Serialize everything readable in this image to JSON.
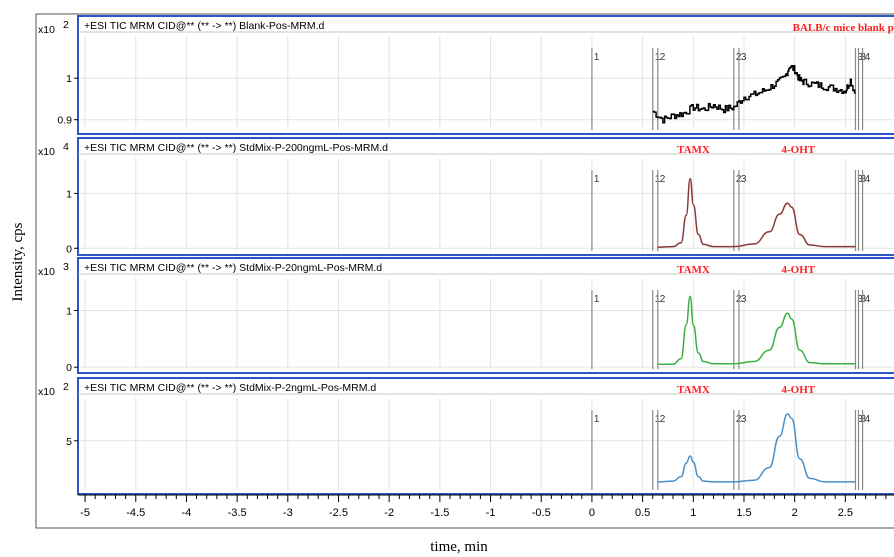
{
  "chart_data": {
    "type": "line",
    "ylabel": "Intensity, cps",
    "xlabel": "time, min",
    "xlim": [
      -5.05,
      2.98
    ],
    "xticks": [
      {
        "value": -5,
        "label": "-5"
      },
      {
        "value": -4.5,
        "label": "-4.5"
      },
      {
        "value": -4,
        "label": "-4"
      },
      {
        "value": -3.5,
        "label": "-3.5"
      },
      {
        "value": -3,
        "label": "-3"
      },
      {
        "value": -2.5,
        "label": "-2.5"
      },
      {
        "value": -2,
        "label": "-2"
      },
      {
        "value": -1.5,
        "label": "-1.5"
      },
      {
        "value": -1,
        "label": "-1"
      },
      {
        "value": -0.5,
        "label": "-0.5"
      },
      {
        "value": 0,
        "label": "0"
      },
      {
        "value": 0.5,
        "label": "0.5"
      },
      {
        "value": 1,
        "label": "1"
      },
      {
        "value": 1.5,
        "label": "1.5"
      },
      {
        "value": 2,
        "label": "2"
      },
      {
        "value": 2.5,
        "label": "2.5"
      }
    ],
    "grid": true,
    "markers": [
      {
        "x": 0,
        "label": "1"
      },
      {
        "x": 0.6,
        "label": "1"
      },
      {
        "x": 0.65,
        "label": "2"
      },
      {
        "x": 1.4,
        "label": "2"
      },
      {
        "x": 1.45,
        "label": "3"
      },
      {
        "x": 2.6,
        "label": "3"
      },
      {
        "x": 2.63,
        "label": "3"
      },
      {
        "x": 2.67,
        "label": "4"
      }
    ],
    "panels": [
      {
        "title": "+ESI TIC MRM CID@** (** -> **) Blank-Pos-MRM.d",
        "scale_label": "x10",
        "scale_exp": "2",
        "ylim": [
          0.88,
          1.08
        ],
        "yticks": [
          {
            "value": 1,
            "label": "1"
          },
          {
            "value": 0.9,
            "label": "0.9"
          }
        ],
        "color": "#000000",
        "trace_kind": "noise",
        "series": [
          {
            "x": [
              0.6,
              0.7,
              0.8,
              0.9,
              1.0,
              1.1,
              1.2,
              1.3,
              1.4,
              1.5,
              1.6,
              1.7,
              1.8,
              1.9,
              1.95,
              2.0,
              2.05,
              2.1,
              2.2,
              2.3,
              2.4,
              2.5,
              2.55,
              2.6
            ],
            "y": [
              0.92,
              0.9,
              0.91,
              0.915,
              0.93,
              0.925,
              0.935,
              0.925,
              0.93,
              0.955,
              0.96,
              0.97,
              0.985,
              1.0,
              1.03,
              1.02,
              0.995,
              0.99,
              0.985,
              0.98,
              0.975,
              0.97,
              0.995,
              0.96
            ]
          }
        ],
        "annotations": [
          {
            "text": "BALB/c mice blank plasma",
            "x": 1.98
          }
        ]
      },
      {
        "title": "+ESI TIC MRM CID@** (** -> **) StdMix-P-200ngmL-Pos-MRM.d",
        "scale_label": "x10",
        "scale_exp": "4",
        "ylim": [
          -0.05,
          1.5
        ],
        "yticks": [
          {
            "value": 1,
            "label": "1"
          },
          {
            "value": 0,
            "label": "0"
          }
        ],
        "color": "#8b3a3a",
        "trace_kind": "peaks",
        "series": [
          {
            "x": [
              0.65,
              0.8,
              0.88,
              0.93,
              0.97,
              1.0,
              1.05,
              1.1,
              1.2,
              1.4,
              1.6,
              1.75,
              1.85,
              1.93,
              1.97,
              2.05,
              2.15,
              2.3,
              2.6
            ],
            "y": [
              0.02,
              0.03,
              0.1,
              0.6,
              1.27,
              0.8,
              0.25,
              0.07,
              0.03,
              0.03,
              0.08,
              0.3,
              0.62,
              0.82,
              0.75,
              0.25,
              0.06,
              0.03,
              0.03
            ]
          }
        ],
        "annotations": [
          {
            "text": "TAMX",
            "x": 0.84
          },
          {
            "text": "4-OHT",
            "x": 1.87
          }
        ]
      },
      {
        "title": "+ESI TIC MRM CID@** (** -> **) StdMix-P-20ngmL-Pos-MRM.d",
        "scale_label": "x10",
        "scale_exp": "3",
        "ylim": [
          -0.05,
          1.45
        ],
        "yticks": [
          {
            "value": 1,
            "label": "1"
          },
          {
            "value": 0,
            "label": "0"
          }
        ],
        "color": "#3cb043",
        "trace_kind": "peaks",
        "series": [
          {
            "x": [
              0.65,
              0.8,
              0.88,
              0.93,
              0.97,
              1.0,
              1.05,
              1.1,
              1.2,
              1.4,
              1.6,
              1.75,
              1.85,
              1.93,
              1.97,
              2.05,
              2.15,
              2.3,
              2.6
            ],
            "y": [
              0.05,
              0.05,
              0.15,
              0.75,
              1.25,
              0.75,
              0.25,
              0.1,
              0.06,
              0.06,
              0.1,
              0.3,
              0.7,
              0.95,
              0.85,
              0.3,
              0.08,
              0.06,
              0.06
            ]
          }
        ],
        "annotations": [
          {
            "text": "TAMX",
            "x": 0.84
          },
          {
            "text": "4-OHT",
            "x": 1.87
          }
        ]
      },
      {
        "title": "+ESI TIC MRM CID@** (** -> **) StdMix-P-2ngmL-Pos-MRM.d",
        "scale_label": "x10",
        "scale_exp": "2",
        "ylim": [
          -0.5,
          9
        ],
        "yticks": [
          {
            "value": 5,
            "label": "5"
          }
        ],
        "color": "#4a90c8",
        "trace_kind": "peaks",
        "series": [
          {
            "x": [
              0.65,
              0.8,
              0.88,
              0.93,
              0.97,
              1.0,
              1.05,
              1.1,
              1.2,
              1.4,
              1.6,
              1.75,
              1.85,
              1.93,
              1.97,
              2.05,
              2.15,
              2.3,
              2.6
            ],
            "y": [
              0.4,
              0.5,
              1.0,
              2.5,
              3.3,
              2.6,
              1.0,
              0.5,
              0.4,
              0.4,
              0.6,
              2.0,
              5.5,
              8.0,
              7.5,
              3.0,
              0.8,
              0.4,
              0.4
            ]
          }
        ],
        "annotations": [
          {
            "text": "TAMX",
            "x": 0.84
          },
          {
            "text": "4-OHT",
            "x": 1.87
          }
        ]
      }
    ]
  }
}
